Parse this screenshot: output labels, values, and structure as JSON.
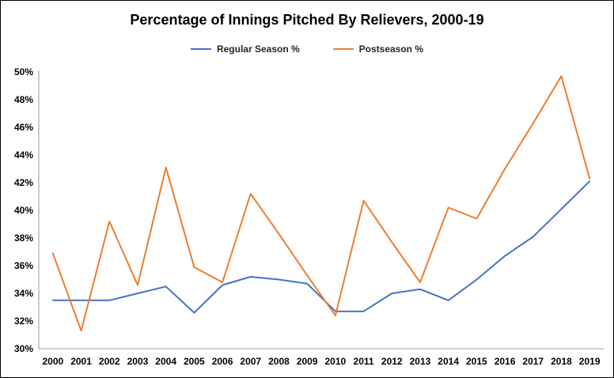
{
  "chart_data": {
    "type": "line",
    "title": "Percentage of Innings Pitched By Relievers, 2000-19",
    "categories": [
      "2000",
      "2001",
      "2002",
      "2003",
      "2004",
      "2005",
      "2006",
      "2007",
      "2008",
      "2009",
      "2010",
      "2011",
      "2012",
      "2013",
      "2014",
      "2015",
      "2016",
      "2017",
      "2018",
      "2019"
    ],
    "series": [
      {
        "name": "Regular Season %",
        "color": "#4472C4",
        "values": [
          33.5,
          33.5,
          33.5,
          34.0,
          34.5,
          32.6,
          34.6,
          35.2,
          35.0,
          34.7,
          32.7,
          32.7,
          34.0,
          34.3,
          33.5,
          35.0,
          36.7,
          38.1,
          40.1,
          42.1
        ]
      },
      {
        "name": "Postseason %",
        "color": "#ED7D31",
        "values": [
          36.9,
          31.3,
          39.2,
          34.6,
          43.1,
          35.9,
          34.8,
          41.2,
          38.3,
          35.3,
          32.4,
          40.7,
          37.7,
          34.8,
          40.2,
          39.4,
          43.0,
          46.3,
          49.7,
          42.3
        ]
      }
    ],
    "ylim": [
      30,
      50
    ],
    "ytick_step": 2,
    "ytick_suffix": "%",
    "grid": false,
    "legend_position": "top",
    "axis_color": "#9A9A9A",
    "text_color": "#000000"
  }
}
